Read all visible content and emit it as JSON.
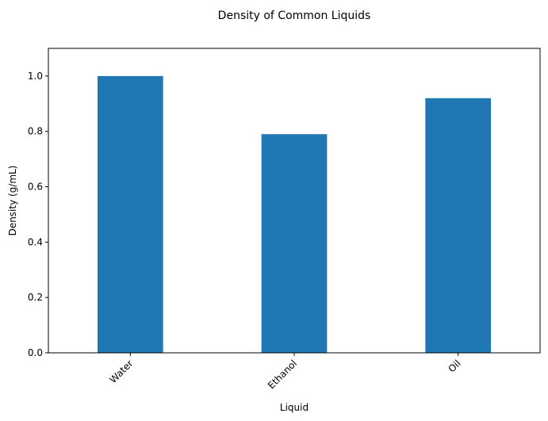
{
  "chart_data": {
    "type": "bar",
    "title": "Density of Common Liquids",
    "xlabel": "Liquid",
    "ylabel": "Density (g/mL)",
    "categories": [
      "Water",
      "Ethanol",
      "Oil"
    ],
    "values": [
      1.0,
      0.79,
      0.92
    ],
    "ylim": [
      0,
      1.1
    ],
    "yticks": [
      "0.0",
      "0.2",
      "0.4",
      "0.6",
      "0.8",
      "1.0"
    ],
    "grid": false,
    "legend": "none",
    "bar_color": "#1f77b4"
  }
}
